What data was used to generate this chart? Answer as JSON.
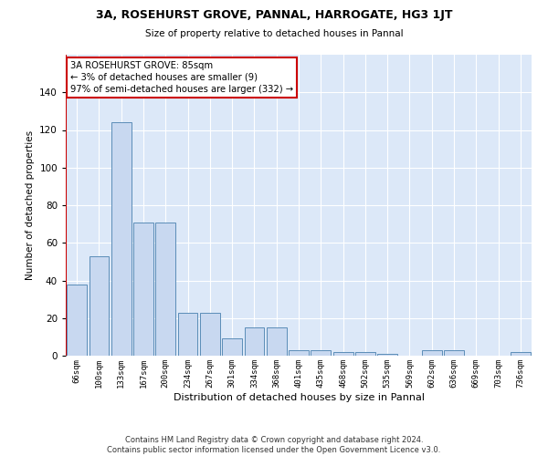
{
  "title1": "3A, ROSEHURST GROVE, PANNAL, HARROGATE, HG3 1JT",
  "title2": "Size of property relative to detached houses in Pannal",
  "xlabel": "Distribution of detached houses by size in Pannal",
  "ylabel": "Number of detached properties",
  "categories": [
    "66sqm",
    "100sqm",
    "133sqm",
    "167sqm",
    "200sqm",
    "234sqm",
    "267sqm",
    "301sqm",
    "334sqm",
    "368sqm",
    "401sqm",
    "435sqm",
    "468sqm",
    "502sqm",
    "535sqm",
    "569sqm",
    "602sqm",
    "636sqm",
    "669sqm",
    "703sqm",
    "736sqm"
  ],
  "values": [
    38,
    53,
    124,
    71,
    71,
    23,
    23,
    9,
    15,
    15,
    3,
    3,
    2,
    2,
    1,
    0,
    3,
    3,
    0,
    0,
    2
  ],
  "bar_color": "#c8d8f0",
  "bar_edge_color": "#5b8db8",
  "background_color": "#dce8f8",
  "grid_color": "#ffffff",
  "vline_color": "#cc0000",
  "annotation_text": "3A ROSEHURST GROVE: 85sqm\n← 3% of detached houses are smaller (9)\n97% of semi-detached houses are larger (332) →",
  "annotation_box_color": "#ffffff",
  "annotation_box_edge": "#cc0000",
  "ylim": [
    0,
    160
  ],
  "yticks": [
    0,
    20,
    40,
    60,
    80,
    100,
    120,
    140,
    160
  ],
  "footer": "Contains HM Land Registry data © Crown copyright and database right 2024.\nContains public sector information licensed under the Open Government Licence v3.0."
}
